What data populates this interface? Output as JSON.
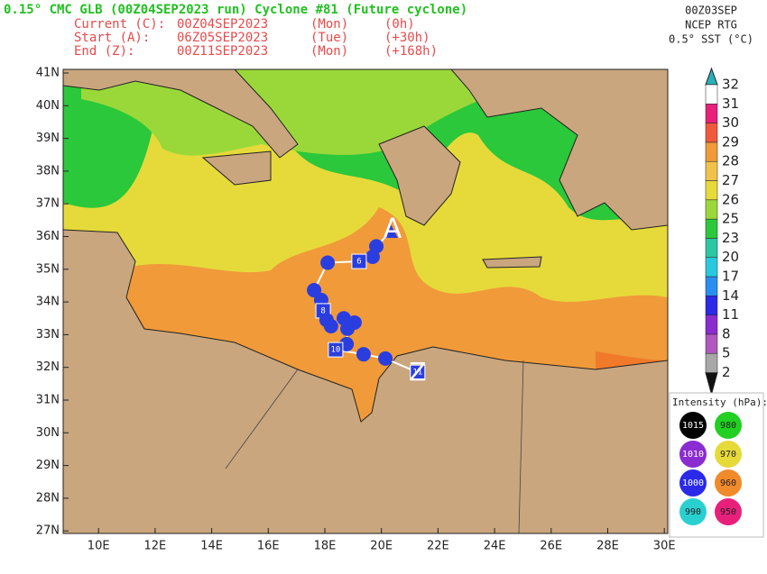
{
  "header": {
    "title": "0.15° CMC GLB (00Z04SEP2023 run) Cyclone #81 (Future cyclone)",
    "rows": [
      [
        "Current (C):",
        "00Z04SEP2023",
        "(Mon)",
        "(0h)"
      ],
      [
        "Start (A):",
        "06Z05SEP2023",
        "(Tue)",
        "(+30h)"
      ],
      [
        "End (Z):",
        "00Z11SEP2023",
        "(Mon)",
        "(+168h)"
      ]
    ]
  },
  "sst": {
    "lines": [
      "00Z03SEP",
      "NCEP RTG",
      "0.5° SST (°C)"
    ],
    "levels": [
      2,
      5,
      8,
      11,
      14,
      17,
      20,
      23,
      25,
      26,
      27,
      28,
      29,
      30,
      31,
      32
    ],
    "colors": [
      "#111111",
      "#a8a8a8",
      "#b058c0",
      "#8a2cd0",
      "#2a2ae8",
      "#2a8ef0",
      "#2ac8e0",
      "#2ac8a0",
      "#2ac83a",
      "#9ad83a",
      "#e6da3a",
      "#f0c24a",
      "#f09a3a",
      "#f05a3a",
      "#e8207c",
      "#ffffff",
      "#2ab0b8"
    ]
  },
  "intensity": {
    "title": "Intensity (hPa):",
    "items": [
      {
        "label": 1015,
        "color": "#000000"
      },
      {
        "label": 980,
        "color": "#22d022"
      },
      {
        "label": 1010,
        "color": "#8a2cd0"
      },
      {
        "label": 970,
        "color": "#e6da3a"
      },
      {
        "label": 1000,
        "color": "#2a2ae8"
      },
      {
        "label": 960,
        "color": "#f08a2a"
      },
      {
        "label": 990,
        "color": "#2ad0d0"
      },
      {
        "label": 950,
        "color": "#e8207c"
      }
    ]
  },
  "map": {
    "lats": [
      {
        "value": 41,
        "label": "41N"
      },
      {
        "value": 40,
        "label": "40N"
      },
      {
        "value": 39,
        "label": "39N"
      },
      {
        "value": 38,
        "label": "38N"
      },
      {
        "value": 37,
        "label": "37N"
      },
      {
        "value": 36,
        "label": "36N"
      },
      {
        "value": 35,
        "label": "35N"
      },
      {
        "value": 34,
        "label": "34N"
      },
      {
        "value": 33,
        "label": "33N"
      },
      {
        "value": 32,
        "label": "32N"
      },
      {
        "value": 31,
        "label": "31N"
      },
      {
        "value": 30,
        "label": "30N"
      },
      {
        "value": 29,
        "label": "29N"
      },
      {
        "value": 28,
        "label": "28N"
      },
      {
        "value": 27,
        "label": "27N"
      }
    ],
    "lons": [
      {
        "value": 10,
        "label": "10E"
      },
      {
        "value": 12,
        "label": "12E"
      },
      {
        "value": 14,
        "label": "14E"
      },
      {
        "value": 16,
        "label": "16E"
      },
      {
        "value": 18,
        "label": "18E"
      },
      {
        "value": 20,
        "label": "20E"
      },
      {
        "value": 22,
        "label": "22E"
      },
      {
        "value": 24,
        "label": "24E"
      },
      {
        "value": 26,
        "label": "26E"
      },
      {
        "value": 28,
        "label": "28E"
      },
      {
        "value": 30,
        "label": "30E"
      }
    ]
  },
  "track": {
    "start_label": "A",
    "end_label": "Z",
    "points": [
      {
        "lon": 20.33,
        "lat": 36.15
      },
      {
        "lon": 19.82,
        "lat": 35.7
      },
      {
        "lon": 19.69,
        "lat": 35.38
      },
      {
        "lon": 19.21,
        "lat": 35.24,
        "label": "6"
      },
      {
        "lon": 18.1,
        "lat": 35.2
      },
      {
        "lon": 17.62,
        "lat": 34.36
      },
      {
        "lon": 17.87,
        "lat": 34.06
      },
      {
        "lon": 17.94,
        "lat": 33.73,
        "label": "8"
      },
      {
        "lon": 18.06,
        "lat": 33.45
      },
      {
        "lon": 18.22,
        "lat": 33.26
      },
      {
        "lon": 18.67,
        "lat": 33.5
      },
      {
        "lon": 19.05,
        "lat": 33.37
      },
      {
        "lon": 18.8,
        "lat": 33.18
      },
      {
        "lon": 18.77,
        "lat": 32.71
      },
      {
        "lon": 18.38,
        "lat": 32.54,
        "label": "10"
      },
      {
        "lon": 19.37,
        "lat": 32.4
      },
      {
        "lon": 20.14,
        "lat": 32.27
      },
      {
        "lon": 21.28,
        "lat": 31.85,
        "label": "11"
      }
    ]
  }
}
